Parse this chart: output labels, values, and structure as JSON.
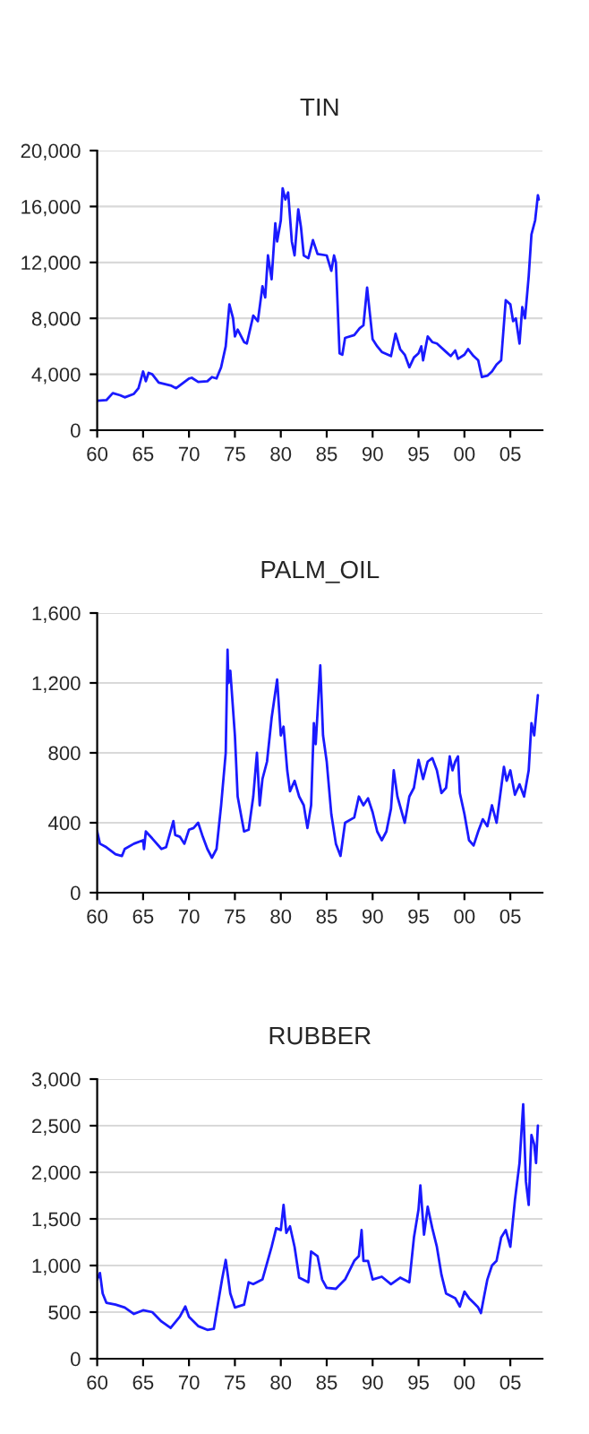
{
  "chart_data": [
    {
      "type": "line",
      "title": "TIN",
      "grid": "y",
      "xlim": [
        1960,
        2008.5
      ],
      "xticks": [
        {
          "value": 1960,
          "label": "60"
        },
        {
          "value": 1965,
          "label": "65"
        },
        {
          "value": 1970,
          "label": "70"
        },
        {
          "value": 1975,
          "label": "75"
        },
        {
          "value": 1980,
          "label": "80"
        },
        {
          "value": 1985,
          "label": "85"
        },
        {
          "value": 1990,
          "label": "90"
        },
        {
          "value": 1995,
          "label": "95"
        },
        {
          "value": 2000,
          "label": "00"
        },
        {
          "value": 2005,
          "label": "05"
        }
      ],
      "ylim": [
        0,
        20000
      ],
      "yticks": [
        0,
        {
          "value": 4000,
          "label": "4,000"
        },
        {
          "value": 8000,
          "label": "8,000"
        },
        {
          "value": 12000,
          "label": "12,000"
        },
        {
          "value": 16000,
          "label": "16,000"
        },
        {
          "value": 20000,
          "label": "20,000"
        }
      ],
      "series": [
        {
          "color": "#1a1aff",
          "x": [
            1960,
            1961,
            1961.7,
            1962.5,
            1963,
            1964,
            1964.5,
            1965,
            1965.3,
            1965.6,
            1966,
            1966.7,
            1968,
            1968.6,
            1970,
            1970.3,
            1971,
            1972,
            1972.5,
            1973,
            1973.5,
            1974,
            1974.4,
            1974.8,
            1975,
            1975.3,
            1976,
            1976.3,
            1977,
            1977.5,
            1978,
            1978.3,
            1978.6,
            1979,
            1979.4,
            1979.6,
            1980,
            1980.2,
            1980.5,
            1980.8,
            1981.2,
            1981.5,
            1981.9,
            1982.2,
            1982.5,
            1983,
            1983.5,
            1984,
            1985,
            1985.5,
            1985.8,
            1986,
            1986.4,
            1986.7,
            1987,
            1988,
            1988.6,
            1989,
            1989.4,
            1990,
            1990.5,
            1991,
            1992,
            1992.5,
            1993,
            1993.5,
            1994,
            1994.5,
            1995,
            1995.3,
            1995.5,
            1996,
            1996.5,
            1997,
            1998,
            1998.5,
            1999,
            1999.3,
            2000,
            2000.4,
            2001,
            2001.5,
            2001.9,
            2002.5,
            2003,
            2003.5,
            2004,
            2004.5,
            2005,
            2005.3,
            2005.6,
            2006,
            2006.3,
            2006.6,
            2007,
            2007.3,
            2007.7,
            2008,
            2008.1
          ],
          "values": [
            2100,
            2150,
            2650,
            2500,
            2350,
            2600,
            3000,
            4200,
            3500,
            4100,
            4000,
            3400,
            3200,
            3000,
            3700,
            3750,
            3450,
            3500,
            3800,
            3700,
            4500,
            6000,
            9000,
            8000,
            6700,
            7200,
            6300,
            6200,
            8200,
            7800,
            10300,
            9500,
            12500,
            10800,
            14800,
            13500,
            15000,
            17300,
            16500,
            17000,
            13500,
            12500,
            15800,
            14500,
            12500,
            12300,
            13600,
            12600,
            12500,
            11400,
            12500,
            12000,
            5500,
            5400,
            6600,
            6800,
            7300,
            7500,
            10200,
            6500,
            6000,
            5600,
            5300,
            6900,
            5800,
            5400,
            4500,
            5200,
            5500,
            6000,
            5000,
            6700,
            6300,
            6200,
            5600,
            5300,
            5700,
            5100,
            5400,
            5800,
            5300,
            5000,
            3800,
            3900,
            4200,
            4700,
            5000,
            9300,
            9000,
            7800,
            8000,
            6200,
            8800,
            8000,
            11000,
            14000,
            15000,
            16800,
            16500
          ]
        }
      ]
    },
    {
      "type": "line",
      "title": "PALM_OIL",
      "grid": "y",
      "xlim": [
        1960,
        2008.5
      ],
      "xticks": [
        {
          "value": 1960,
          "label": "60"
        },
        {
          "value": 1965,
          "label": "65"
        },
        {
          "value": 1970,
          "label": "70"
        },
        {
          "value": 1975,
          "label": "75"
        },
        {
          "value": 1980,
          "label": "80"
        },
        {
          "value": 1985,
          "label": "85"
        },
        {
          "value": 1990,
          "label": "90"
        },
        {
          "value": 1995,
          "label": "95"
        },
        {
          "value": 2000,
          "label": "00"
        },
        {
          "value": 2005,
          "label": "05"
        }
      ],
      "ylim": [
        0,
        1600
      ],
      "yticks": [
        0,
        400,
        800,
        {
          "value": 1200,
          "label": "1,200"
        },
        {
          "value": 1600,
          "label": "1,600"
        }
      ],
      "series": [
        {
          "color": "#1a1aff",
          "x": [
            1960,
            1960.3,
            1961,
            1962,
            1962.7,
            1963,
            1964,
            1965,
            1965.1,
            1965.3,
            1966,
            1967,
            1967.5,
            1968.3,
            1968.5,
            1969,
            1969.5,
            1970,
            1970.5,
            1971,
            1971.5,
            1972,
            1972.5,
            1973,
            1973.5,
            1974,
            1974.2,
            1974.3,
            1974.5,
            1975,
            1975.3,
            1976,
            1976.5,
            1977,
            1977.4,
            1977.7,
            1978,
            1978.5,
            1979,
            1979.6,
            1980,
            1980.3,
            1980.7,
            1981,
            1981.5,
            1982,
            1982.5,
            1982.9,
            1983.3,
            1983.6,
            1983.8,
            1984.3,
            1984.6,
            1985,
            1985.5,
            1986,
            1986.5,
            1987,
            1988,
            1988.5,
            1989,
            1989.5,
            1990,
            1990.5,
            1991,
            1991.5,
            1992,
            1992.3,
            1992.7,
            1993.5,
            1994,
            1994.5,
            1995,
            1995.5,
            1996,
            1996.5,
            1997,
            1997.5,
            1998,
            1998.4,
            1998.7,
            1999,
            1999.3,
            1999.5,
            2000,
            2000.5,
            2001,
            2001.5,
            2002,
            2002.5,
            2003,
            2003.5,
            2004,
            2004.3,
            2004.6,
            2005,
            2005.5,
            2006,
            2006.5,
            2007,
            2007.3,
            2007.6,
            2008
          ],
          "values": [
            350,
            280,
            260,
            220,
            210,
            250,
            280,
            300,
            250,
            350,
            310,
            250,
            260,
            410,
            330,
            320,
            280,
            360,
            370,
            400,
            320,
            250,
            200,
            250,
            500,
            800,
            1390,
            1200,
            1270,
            900,
            550,
            350,
            360,
            550,
            800,
            500,
            650,
            750,
            1000,
            1220,
            900,
            950,
            700,
            580,
            640,
            550,
            500,
            370,
            500,
            970,
            850,
            1300,
            900,
            750,
            450,
            280,
            210,
            400,
            430,
            550,
            500,
            540,
            460,
            350,
            300,
            350,
            480,
            700,
            550,
            400,
            550,
            600,
            760,
            650,
            750,
            770,
            700,
            570,
            600,
            780,
            700,
            750,
            780,
            570,
            450,
            300,
            270,
            350,
            420,
            380,
            500,
            400,
            600,
            720,
            640,
            700,
            560,
            620,
            550,
            700,
            970,
            900,
            1130
          ]
        }
      ]
    },
    {
      "type": "line",
      "title": "RUBBER",
      "grid": "y",
      "xlim": [
        1960,
        2008.5
      ],
      "xticks": [
        {
          "value": 1960,
          "label": "60"
        },
        {
          "value": 1965,
          "label": "65"
        },
        {
          "value": 1970,
          "label": "70"
        },
        {
          "value": 1975,
          "label": "75"
        },
        {
          "value": 1980,
          "label": "80"
        },
        {
          "value": 1985,
          "label": "85"
        },
        {
          "value": 1990,
          "label": "90"
        },
        {
          "value": 1995,
          "label": "95"
        },
        {
          "value": 2000,
          "label": "00"
        },
        {
          "value": 2005,
          "label": "05"
        }
      ],
      "ylim": [
        0,
        3000
      ],
      "yticks": [
        0,
        500,
        {
          "value": 1000,
          "label": "1,000"
        },
        {
          "value": 1500,
          "label": "1,500"
        },
        {
          "value": 2000,
          "label": "2,000"
        },
        {
          "value": 2500,
          "label": "2,500"
        },
        {
          "value": 3000,
          "label": "3,000"
        }
      ],
      "series": [
        {
          "color": "#1a1aff",
          "x": [
            1960,
            1960.3,
            1960.6,
            1961,
            1962,
            1963,
            1964,
            1965,
            1966,
            1967,
            1968,
            1969,
            1969.6,
            1970,
            1971,
            1972,
            1972.7,
            1973,
            1973.6,
            1974,
            1974.5,
            1975,
            1976,
            1976.5,
            1977,
            1978,
            1979,
            1979.5,
            1980,
            1980.3,
            1980.6,
            1981,
            1981.5,
            1982,
            1983,
            1983.3,
            1984,
            1984.5,
            1985,
            1986,
            1987,
            1988,
            1988.5,
            1988.8,
            1989,
            1989.5,
            1990,
            1991,
            1992,
            1993,
            1994,
            1994.5,
            1995,
            1995.2,
            1995.6,
            1996,
            1996.5,
            1997,
            1997.5,
            1998,
            1999,
            1999.5,
            2000,
            2000.5,
            2001,
            2001.5,
            2001.8,
            2002.2,
            2002.5,
            2003,
            2003.5,
            2004,
            2004.5,
            2005,
            2005.5,
            2006,
            2006.4,
            2006.7,
            2007,
            2007.3,
            2007.6,
            2007.8,
            2008
          ],
          "values": [
            850,
            920,
            700,
            600,
            580,
            550,
            480,
            520,
            500,
            400,
            330,
            450,
            560,
            450,
            350,
            310,
            320,
            500,
            850,
            1060,
            700,
            550,
            580,
            820,
            800,
            850,
            1200,
            1400,
            1380,
            1650,
            1350,
            1420,
            1200,
            870,
            820,
            1150,
            1100,
            850,
            760,
            750,
            850,
            1050,
            1100,
            1380,
            1050,
            1050,
            850,
            880,
            800,
            870,
            820,
            1300,
            1600,
            1860,
            1330,
            1630,
            1400,
            1200,
            900,
            700,
            650,
            560,
            720,
            650,
            600,
            550,
            490,
            700,
            850,
            1000,
            1050,
            1300,
            1380,
            1200,
            1700,
            2100,
            2730,
            1900,
            1650,
            2400,
            2300,
            2100,
            2500
          ]
        }
      ]
    }
  ]
}
